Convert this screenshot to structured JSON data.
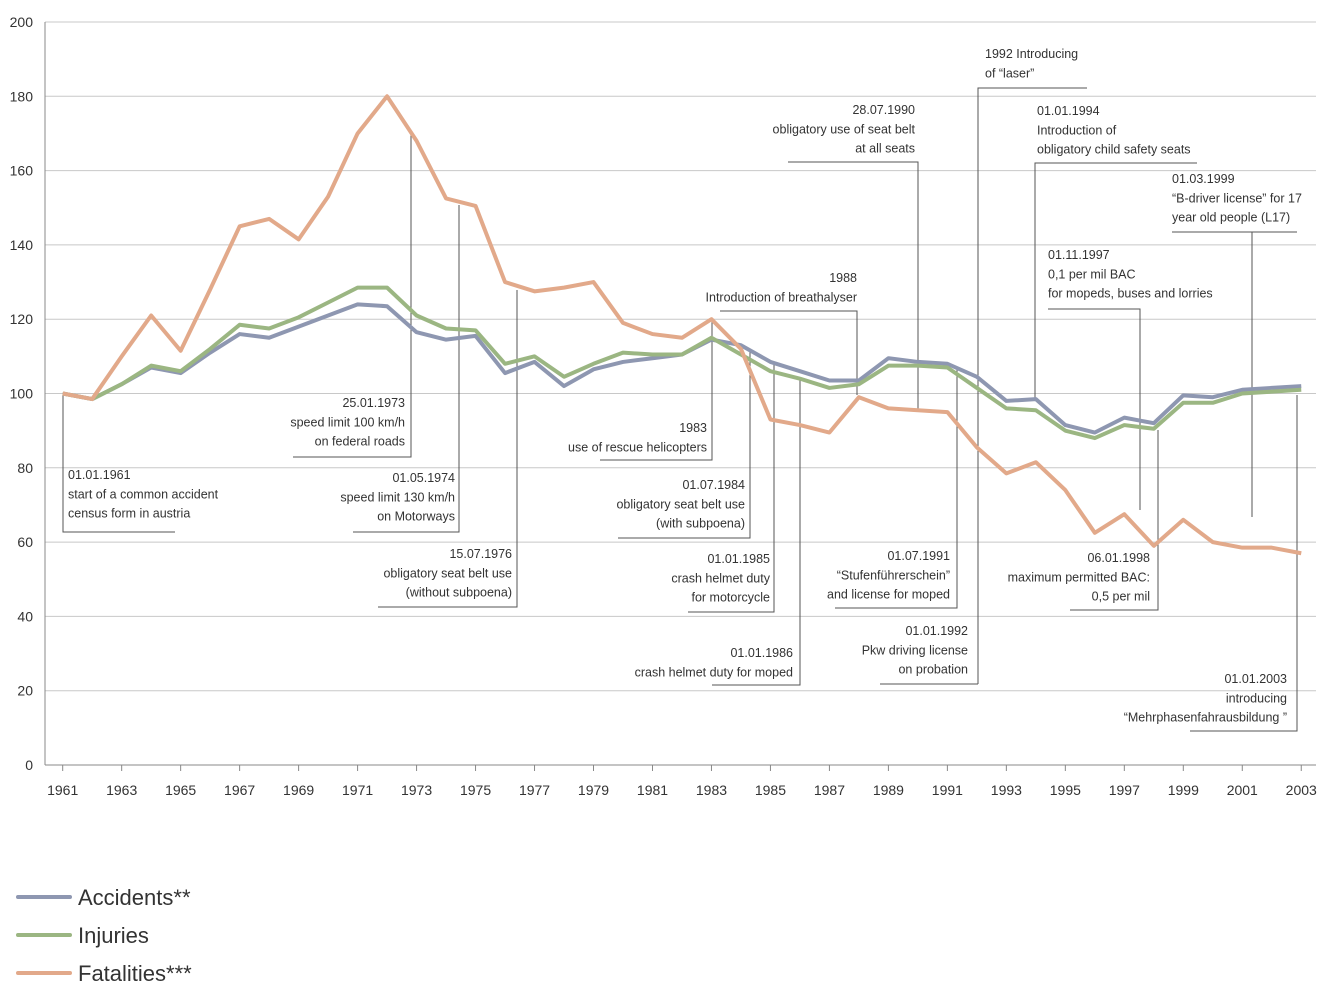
{
  "chart_data": {
    "type": "line",
    "x": [
      1961,
      1962,
      1963,
      1964,
      1965,
      1966,
      1967,
      1968,
      1969,
      1970,
      1971,
      1972,
      1973,
      1974,
      1975,
      1976,
      1977,
      1978,
      1979,
      1980,
      1981,
      1982,
      1983,
      1984,
      1985,
      1986,
      1987,
      1988,
      1989,
      1990,
      1991,
      1992,
      1993,
      1994,
      1995,
      1996,
      1997,
      1998,
      1999,
      2000,
      2001,
      2002,
      2003
    ],
    "series": [
      {
        "name": "Accidents**",
        "color": "#8e97b1",
        "values": [
          100,
          98.5,
          102.5,
          107,
          105.5,
          111,
          116,
          115,
          118,
          121,
          124,
          123.5,
          116.5,
          114.5,
          115.5,
          105.5,
          108.5,
          102,
          106.5,
          108.5,
          109.5,
          110.5,
          114.5,
          113,
          108.5,
          106,
          103.5,
          103.5,
          109.5,
          108.5,
          108,
          104.5,
          98,
          98.5,
          91.5,
          89.5,
          93.5,
          92,
          99.5,
          99,
          101,
          101.5,
          102
        ]
      },
      {
        "name": "Injuries",
        "color": "#9bb682",
        "values": [
          100,
          98.5,
          102.5,
          107.5,
          106,
          112,
          118.5,
          117.5,
          120.5,
          124.5,
          128.5,
          128.5,
          121,
          117.5,
          117,
          108,
          110,
          104.5,
          108,
          111,
          110.5,
          110.5,
          115,
          110.5,
          106,
          104,
          101.5,
          102.5,
          107.5,
          107.5,
          107,
          101.5,
          96,
          95.5,
          90,
          88,
          91.5,
          90.5,
          97.5,
          97.5,
          100,
          100.5,
          101
        ]
      },
      {
        "name": "Fatalities***",
        "color": "#e2a98a",
        "values": [
          100,
          98.5,
          110,
          121,
          111.5,
          128,
          145,
          147,
          141.5,
          153,
          170,
          180,
          168,
          152.5,
          150.5,
          130,
          127.5,
          128.5,
          130,
          119,
          116,
          115,
          120,
          112,
          93,
          91.5,
          89.5,
          99,
          96,
          95.5,
          95,
          85.5,
          78.5,
          81.5,
          74,
          62.5,
          67.5,
          59,
          66,
          60,
          58.5,
          58.5,
          57
        ]
      }
    ],
    "xlim": [
      1960.4,
      2003.5
    ],
    "xticks": [
      1961,
      1963,
      1965,
      1967,
      1969,
      1971,
      1973,
      1975,
      1977,
      1979,
      1981,
      1983,
      1985,
      1987,
      1989,
      1991,
      1993,
      1995,
      1997,
      1999,
      2001,
      2003
    ],
    "ylim": [
      0,
      200
    ],
    "yticks": [
      0,
      20,
      40,
      60,
      80,
      100,
      120,
      140,
      160,
      180,
      200
    ],
    "grid": true,
    "annotations": [
      [
        "01.01.1961",
        "start of a common accident",
        "census form in austria"
      ],
      [
        "25.01.1973",
        "speed limit 100 km/h",
        "on federal roads"
      ],
      [
        "01.05.1974",
        "speed limit 130 km/h",
        "on Motorways"
      ],
      [
        "15.07.1976",
        "obligatory seat belt use",
        "(without subpoena)"
      ],
      [
        "1983",
        "use of rescue helicopters"
      ],
      [
        "01.07.1984",
        "obligatory seat belt use",
        "(with subpoena)"
      ],
      [
        "01.01.1985",
        "crash helmet duty",
        "for motorcycle"
      ],
      [
        "01.01.1986",
        "crash helmet duty for moped"
      ],
      [
        "1988",
        "Introduction of  breathalyser"
      ],
      [
        "28.07.1990",
        "obligatory use of seat belt",
        "at all seats"
      ],
      [
        "01.07.1991",
        "“Stufenführerschein”",
        "and license for moped"
      ],
      [
        "01.01.1992",
        "Pkw driving license",
        "on probation"
      ],
      [
        "1992 Introducing",
        "of “laser”"
      ],
      [
        "01.01.1994",
        "Introduction of",
        "obligatory child safety seats"
      ],
      [
        "01.11.1997",
        "0,1 per mil BAC",
        "for mopeds, buses and lorries"
      ],
      [
        "06.01.1998",
        "maximum permitted BAC:",
        "0,5 per mil"
      ],
      [
        "01.03.1999",
        "“B-driver license” for 17",
        "year old people (L17)"
      ],
      [
        "01.01.2003",
        "introducing",
        "“Mehrphasenfahrausbildung ”"
      ]
    ]
  }
}
